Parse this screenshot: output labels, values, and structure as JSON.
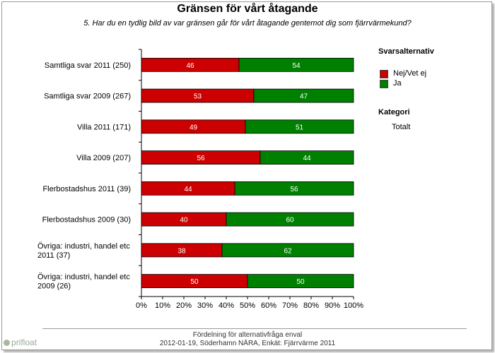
{
  "title": "Gränsen för vårt åtagande",
  "subtitle": "5. Har du en tydlig bild av var gränsen går för vårt åtagande gentemot dig som fjärrvärmekund?",
  "legend": {
    "heading": "Svarsalternativ",
    "items": [
      {
        "label": "Nej/Vet ej",
        "color": "#cc0000"
      },
      {
        "label": "Ja",
        "color": "#008000"
      }
    ],
    "category_heading": "Kategori",
    "category_value": "Totalt"
  },
  "footer": {
    "line1": "Fördelning för alternativfråga enval",
    "line2": "2012-01-19, Söderhamn NÄRA, Enkät: Fjärrvärme 2011",
    "logo": "p"
  },
  "chart_data": {
    "type": "bar",
    "orientation": "horizontal",
    "stacked": true,
    "categories": [
      [
        "Samtliga svar 2011 (250)"
      ],
      [
        "Samtliga svar 2009 (267)"
      ],
      [
        "Villa 2011 (171)"
      ],
      [
        "Villa 2009 (207)"
      ],
      [
        "Flerbostadshus 2011 (39)"
      ],
      [
        "Flerbostadshus 2009 (30)"
      ],
      [
        "Övriga: industri, handel etc",
        "2011 (37)"
      ],
      [
        "Övriga: industri, handel etc",
        "2009 (26)"
      ]
    ],
    "series": [
      {
        "name": "Nej/Vet ej",
        "color": "#cc0000",
        "values": [
          46,
          53,
          49,
          56,
          44,
          40,
          38,
          50
        ]
      },
      {
        "name": "Ja",
        "color": "#008000",
        "values": [
          54,
          47,
          51,
          44,
          56,
          60,
          62,
          50
        ]
      }
    ],
    "xlim": [
      0,
      100
    ],
    "xticks": [
      "0%",
      "10%",
      "20%",
      "30%",
      "40%",
      "50%",
      "60%",
      "70%",
      "80%",
      "90%",
      "100%"
    ],
    "grid": false,
    "legend_position": "right"
  }
}
